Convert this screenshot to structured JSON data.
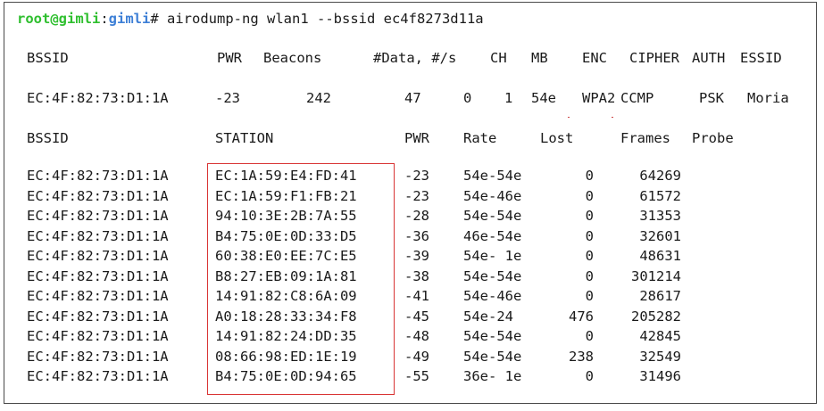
{
  "terminal": {
    "prompt_user": "root@gimli",
    "prompt_sep": ":",
    "prompt_dir": "gimli",
    "prompt_symbol": "#",
    "command": " airodump-ng wlan1 --bssid ec4f8273d11a"
  },
  "ap_table": {
    "headers": [
      "BSSID",
      "PWR",
      "Beacons",
      "#Data, #/s",
      "CH",
      "MB",
      "ENC",
      "CIPHER",
      "AUTH",
      "ESSID"
    ],
    "row": {
      "bssid": "EC:4F:82:73:D1:1A",
      "pwr": "-23",
      "beacons": "242",
      "data": "47",
      "per_s": "0",
      "ch": "1",
      "mb": "54e",
      "enc": "WPA2",
      "cipher": "CCMP",
      "auth": "PSK",
      "essid": "Moria"
    }
  },
  "station_table": {
    "headers": [
      "BSSID",
      "STATION",
      "PWR",
      "Rate",
      "Lost",
      "Frames",
      "Probe"
    ],
    "rows": [
      {
        "bssid": "EC:4F:82:73:D1:1A",
        "station": "EC:1A:59:E4:FD:41",
        "pwr": "-23",
        "rate": "54e-54e",
        "lost": "0",
        "frames": "64269"
      },
      {
        "bssid": "EC:4F:82:73:D1:1A",
        "station": "EC:1A:59:F1:FB:21",
        "pwr": "-23",
        "rate": "54e-46e",
        "lost": "0",
        "frames": "61572"
      },
      {
        "bssid": "EC:4F:82:73:D1:1A",
        "station": "94:10:3E:2B:7A:55",
        "pwr": "-28",
        "rate": "54e-54e",
        "lost": "0",
        "frames": "31353"
      },
      {
        "bssid": "EC:4F:82:73:D1:1A",
        "station": "B4:75:0E:0D:33:D5",
        "pwr": "-36",
        "rate": "46e-54e",
        "lost": "0",
        "frames": "32601"
      },
      {
        "bssid": "EC:4F:82:73:D1:1A",
        "station": "60:38:E0:EE:7C:E5",
        "pwr": "-39",
        "rate": "54e- 1e",
        "lost": "0",
        "frames": "48631"
      },
      {
        "bssid": "EC:4F:82:73:D1:1A",
        "station": "B8:27:EB:09:1A:81",
        "pwr": "-38",
        "rate": "54e-54e",
        "lost": "0",
        "frames": "301214"
      },
      {
        "bssid": "EC:4F:82:73:D1:1A",
        "station": "14:91:82:C8:6A:09",
        "pwr": "-41",
        "rate": "54e-46e",
        "lost": "0",
        "frames": "28617"
      },
      {
        "bssid": "EC:4F:82:73:D1:1A",
        "station": "A0:18:28:33:34:F8",
        "pwr": "-45",
        "rate": "54e-24",
        "lost": "476",
        "frames": "205282"
      },
      {
        "bssid": "EC:4F:82:73:D1:1A",
        "station": "14:91:82:24:DD:35",
        "pwr": "-48",
        "rate": "54e-54e",
        "lost": "0",
        "frames": "42845"
      },
      {
        "bssid": "EC:4F:82:73:D1:1A",
        "station": "08:66:98:ED:1E:19",
        "pwr": "-49",
        "rate": "54e-54e",
        "lost": "238",
        "frames": "32549"
      },
      {
        "bssid": "EC:4F:82:73:D1:1A",
        "station": "B4:75:0E:0D:94:65",
        "pwr": "-55",
        "rate": "36e- 1e",
        "lost": "0",
        "frames": "31496"
      }
    ]
  },
  "colors": {
    "user": "#2fbf2f",
    "host": "#3d7fd6",
    "highlight_border": "#d93535"
  }
}
